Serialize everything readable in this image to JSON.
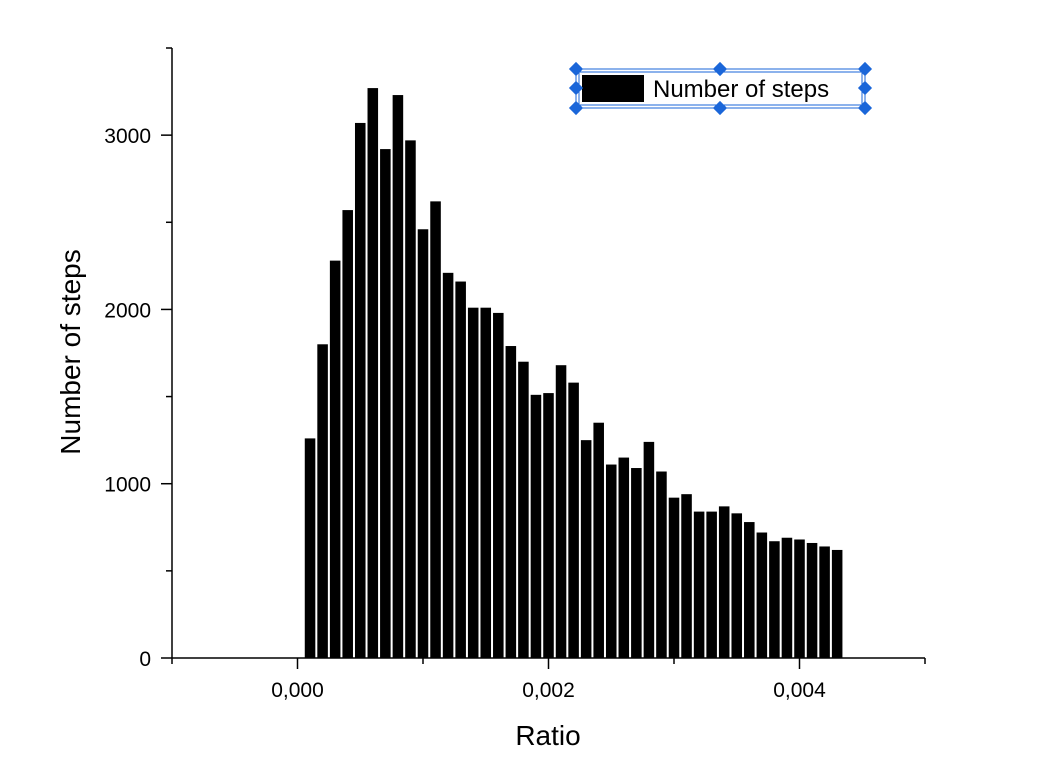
{
  "chart_data": {
    "type": "bar",
    "title": "",
    "xlabel": "Ratio",
    "ylabel": "Number of steps",
    "xlim": [
      -0.001,
      0.005
    ],
    "ylim": [
      0,
      3500
    ],
    "x_ticks": [
      {
        "value": 0.0,
        "label": "0,000"
      },
      {
        "value": 0.002,
        "label": "0,002"
      },
      {
        "value": 0.004,
        "label": "0,004"
      }
    ],
    "y_ticks": [
      {
        "value": 0,
        "label": "0"
      },
      {
        "value": 1000,
        "label": "1000"
      },
      {
        "value": 2000,
        "label": "2000"
      },
      {
        "value": 3000,
        "label": "3000"
      }
    ],
    "bin_width": 0.0001,
    "grid": false,
    "legend_position": "top-right",
    "series": [
      {
        "name": "Number of steps",
        "color": "#000000",
        "x": [
          0.0001,
          0.0002,
          0.0003,
          0.0004,
          0.0005,
          0.0006,
          0.0007,
          0.0008,
          0.0009,
          0.001,
          0.0011,
          0.0012,
          0.0013,
          0.0014,
          0.0015,
          0.0016,
          0.0017,
          0.0018,
          0.0019,
          0.002,
          0.0021,
          0.0022,
          0.0023,
          0.0024,
          0.0025,
          0.0026,
          0.0027,
          0.0028,
          0.0029,
          0.003,
          0.0031,
          0.0032,
          0.0033,
          0.0034,
          0.0035,
          0.0036,
          0.0037,
          0.0038,
          0.0039,
          0.004,
          0.0041,
          0.0042,
          0.0043
        ],
        "values": [
          1260,
          1800,
          2280,
          2570,
          3070,
          3270,
          2920,
          3230,
          2970,
          2460,
          2620,
          2210,
          2160,
          2010,
          2010,
          1980,
          1790,
          1700,
          1510,
          1520,
          1680,
          1580,
          1250,
          1350,
          1110,
          1150,
          1090,
          1240,
          1070,
          920,
          940,
          840,
          840,
          870,
          830,
          780,
          720,
          670,
          690,
          680,
          660,
          640,
          620
        ]
      }
    ]
  }
}
